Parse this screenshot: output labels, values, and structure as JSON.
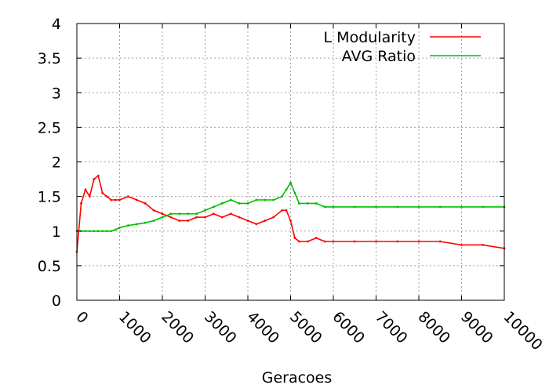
{
  "chart_data": {
    "type": "line",
    "title": "",
    "xlabel": "Geracoes",
    "ylabel": "",
    "xlim": [
      0,
      10000
    ],
    "ylim": [
      0,
      4
    ],
    "x_ticks": [
      0,
      1000,
      2000,
      3000,
      4000,
      5000,
      6000,
      7000,
      8000,
      9000,
      10000
    ],
    "y_ticks": [
      0,
      0.5,
      1,
      1.5,
      2,
      2.5,
      3,
      3.5,
      4
    ],
    "y_tick_labels": [
      "0",
      "0.5",
      "1",
      "1.5",
      "2",
      "2.5",
      "3",
      "3.5",
      "4"
    ],
    "grid": true,
    "legend_position": "top-right",
    "series": [
      {
        "name": "L Modularity",
        "color": "#ff0000",
        "x": [
          0,
          100,
          200,
          300,
          400,
          500,
          600,
          700,
          800,
          900,
          1000,
          1200,
          1400,
          1600,
          1800,
          2000,
          2200,
          2400,
          2600,
          2800,
          3000,
          3200,
          3400,
          3600,
          3800,
          4000,
          4200,
          4400,
          4600,
          4800,
          4900,
          5000,
          5100,
          5200,
          5400,
          5600,
          5800,
          6000,
          6500,
          7000,
          7500,
          8000,
          8500,
          9000,
          9500,
          10000
        ],
        "values": [
          0.7,
          1.4,
          1.6,
          1.5,
          1.75,
          1.8,
          1.55,
          1.5,
          1.45,
          1.45,
          1.45,
          1.5,
          1.45,
          1.4,
          1.3,
          1.25,
          1.2,
          1.15,
          1.15,
          1.2,
          1.2,
          1.25,
          1.2,
          1.25,
          1.2,
          1.15,
          1.1,
          1.15,
          1.2,
          1.3,
          1.3,
          1.15,
          0.9,
          0.85,
          0.85,
          0.9,
          0.85,
          0.85,
          0.85,
          0.85,
          0.85,
          0.85,
          0.85,
          0.8,
          0.8,
          0.75
        ]
      },
      {
        "name": "AVG Ratio",
        "color": "#00c000",
        "x": [
          0,
          100,
          200,
          300,
          400,
          500,
          600,
          700,
          800,
          900,
          1000,
          1200,
          1400,
          1600,
          1800,
          2000,
          2200,
          2400,
          2600,
          2800,
          3000,
          3200,
          3400,
          3600,
          3800,
          4000,
          4200,
          4400,
          4600,
          4800,
          4900,
          5000,
          5100,
          5200,
          5400,
          5600,
          5800,
          6000,
          6500,
          7000,
          7500,
          8000,
          8500,
          9000,
          9500,
          10000
        ],
        "values": [
          1.0,
          1.0,
          1.0,
          1.0,
          1.0,
          1.0,
          1.0,
          1.0,
          1.0,
          1.02,
          1.05,
          1.08,
          1.1,
          1.12,
          1.15,
          1.2,
          1.25,
          1.25,
          1.25,
          1.25,
          1.3,
          1.35,
          1.4,
          1.45,
          1.4,
          1.4,
          1.45,
          1.45,
          1.45,
          1.5,
          1.6,
          1.7,
          1.55,
          1.4,
          1.4,
          1.4,
          1.35,
          1.35,
          1.35,
          1.35,
          1.35,
          1.35,
          1.35,
          1.35,
          1.35,
          1.35
        ]
      }
    ]
  }
}
